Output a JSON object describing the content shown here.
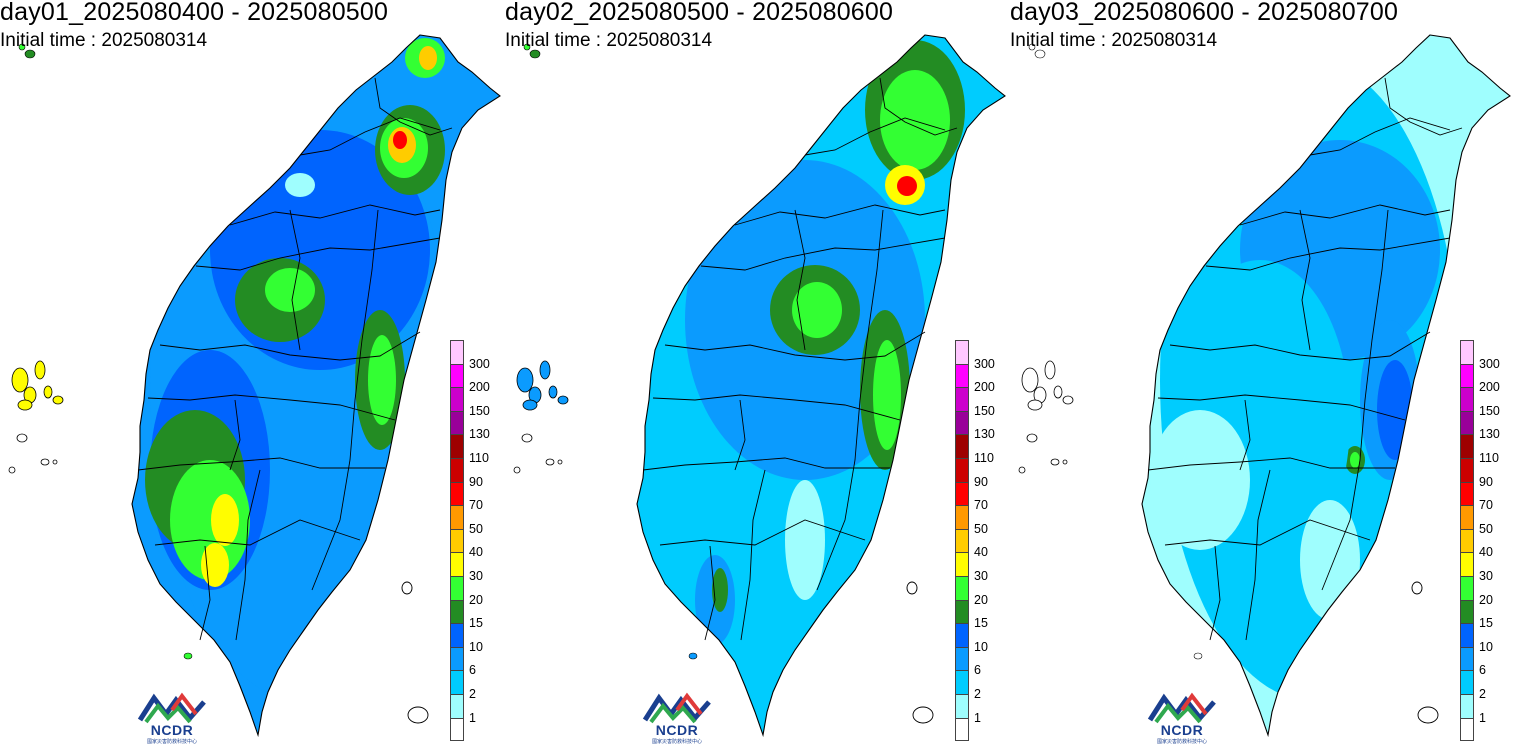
{
  "panels": [
    {
      "title": "day01_2025080400 - 2025080500",
      "initial_label": "Initial time :",
      "initial_value": "2025080314",
      "fill_shift": 0
    },
    {
      "title": "day02_2025080500 - 2025080600",
      "initial_label": "Initial time :",
      "initial_value": "2025080314",
      "fill_shift": -1
    },
    {
      "title": "day03_2025080600 - 2025080700",
      "initial_label": "Initial time :",
      "initial_value": "2025080314",
      "fill_shift": -2
    }
  ],
  "legend": {
    "levels": [
      "1",
      "2",
      "6",
      "10",
      "15",
      "20",
      "30",
      "40",
      "50",
      "70",
      "90",
      "110",
      "130",
      "150",
      "200",
      "300"
    ],
    "colors": [
      "#ffffff",
      "#9ffefe",
      "#00ccfe",
      "#0b9bfe",
      "#0064fe",
      "#238c23",
      "#33ff33",
      "#fffd00",
      "#ffcc00",
      "#ff9900",
      "#ff0000",
      "#cc0000",
      "#9e0000",
      "#990099",
      "#cc00cc",
      "#ff00ff",
      "#ffc8ff"
    ]
  },
  "logo": {
    "text": "NCDR",
    "subtext": "國家災害防救科技中心"
  }
}
